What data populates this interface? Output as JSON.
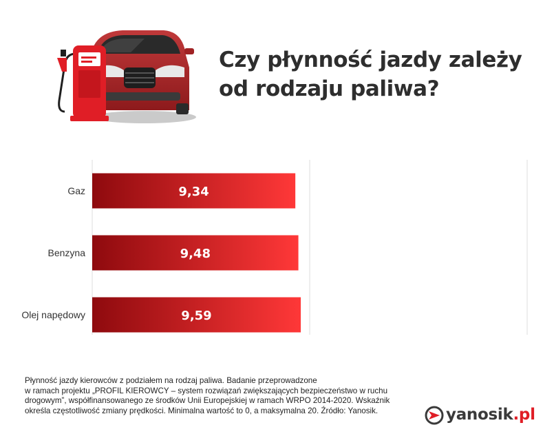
{
  "title_line1": "Czy płynność jazdy zależy",
  "title_line2": "od rodzaju paliwa?",
  "colors": {
    "bar_dark": "#8e0a0e",
    "bar_light": "#ff3838",
    "brand_red": "#e01e26",
    "text": "#2e2e2e",
    "grid": "#dddddd"
  },
  "chart_data": {
    "type": "bar",
    "orientation": "horizontal",
    "categories": [
      "Gaz",
      "Benzyna",
      "Olej napędowy"
    ],
    "values": [
      9.34,
      9.48,
      9.59
    ],
    "value_labels": [
      "9,34",
      "9,48",
      "9,59"
    ],
    "xlim": [
      0,
      20
    ],
    "grid": true
  },
  "footnote": [
    "Płynność jazdy kierowców z podziałem na rodzaj paliwa. Badanie przeprowadzone",
    "w ramach projektu „PROFIL KIEROWCY – system rozwiązań zwiększających bezpieczeństwo w ruchu",
    "drogowym”, współfinansowanego ze środków Unii Europejskiej w ramach WRPO 2014-2020. Wskaźnik",
    "określa częstotliwość zmiany prędkości. Minimalna wartość to 0, a maksymalna 20. Źródło: Yanosik."
  ],
  "logo": {
    "name": "yanosik",
    "tld": ".pl",
    "icon": "yanosik-logo-icon"
  },
  "illustration": {
    "icons": [
      "car-icon",
      "fuel-pump-icon"
    ]
  }
}
